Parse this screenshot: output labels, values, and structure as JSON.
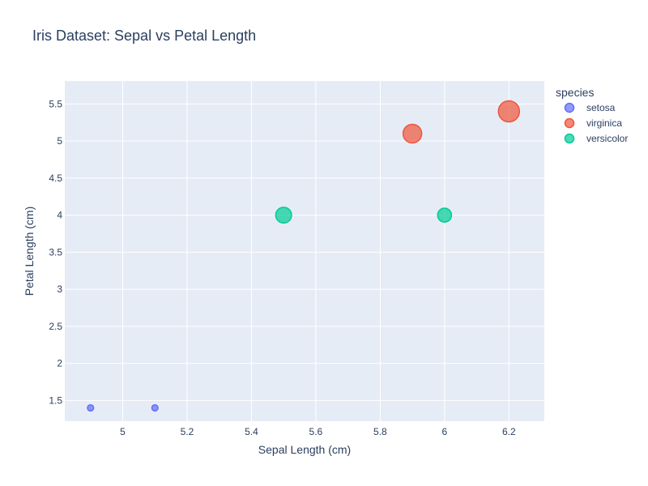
{
  "chart_data": {
    "type": "scatter",
    "title": "Iris Dataset: Sepal vs Petal Length",
    "xlabel": "Sepal Length (cm)",
    "ylabel": "Petal Length (cm)",
    "xlim": [
      4.82,
      6.31
    ],
    "ylim": [
      1.22,
      5.81
    ],
    "xticks": [
      5,
      5.2,
      5.4,
      5.6,
      5.8,
      6,
      6.2
    ],
    "yticks": [
      1.5,
      2,
      2.5,
      3,
      3.5,
      4,
      4.5,
      5,
      5.5
    ],
    "grid": true,
    "background": "#e5ecf6",
    "legend": {
      "title": "species",
      "position": "right"
    },
    "size_variable": "marker size grows with value (per point size field)",
    "series": [
      {
        "name": "setosa",
        "color": "#636efa",
        "points": [
          {
            "x": 4.9,
            "y": 1.4,
            "size": 0.2
          },
          {
            "x": 5.1,
            "y": 1.4,
            "size": 0.2
          }
        ]
      },
      {
        "name": "virginica",
        "color": "#ef553b",
        "points": [
          {
            "x": 5.9,
            "y": 5.1,
            "size": 1.8
          },
          {
            "x": 6.2,
            "y": 5.4,
            "size": 2.3
          }
        ]
      },
      {
        "name": "versicolor",
        "color": "#00cc96",
        "points": [
          {
            "x": 5.5,
            "y": 4.0,
            "size": 1.3
          },
          {
            "x": 6.0,
            "y": 4.0,
            "size": 1.0
          }
        ]
      }
    ]
  }
}
